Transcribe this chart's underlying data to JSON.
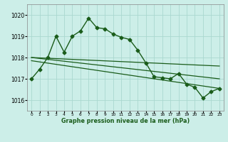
{
  "title": "Graphe pression niveau de la mer (hPa)",
  "bg_color": "#cceee8",
  "grid_color": "#aad8d0",
  "line_color": "#1a5c1a",
  "xlim": [
    -0.5,
    23.5
  ],
  "ylim": [
    1015.5,
    1020.5
  ],
  "yticks": [
    1016,
    1017,
    1018,
    1019,
    1020
  ],
  "xticks": [
    0,
    1,
    2,
    3,
    4,
    5,
    6,
    7,
    8,
    9,
    10,
    11,
    12,
    13,
    14,
    15,
    16,
    17,
    18,
    19,
    20,
    21,
    22,
    23
  ],
  "series": [
    {
      "x": [
        0,
        1,
        2,
        3,
        4,
        5,
        6,
        7,
        8,
        9,
        10,
        11,
        12,
        13,
        14,
        15,
        16,
        17,
        18,
        19,
        20,
        21,
        22,
        23
      ],
      "y": [
        1017.0,
        1017.45,
        1018.0,
        1019.0,
        1018.25,
        1019.0,
        1019.25,
        1019.85,
        1019.4,
        1019.35,
        1019.1,
        1018.95,
        1018.85,
        1018.35,
        1017.75,
        1017.1,
        1017.05,
        1017.0,
        1017.25,
        1016.75,
        1016.6,
        1016.1,
        1016.4,
        1016.55
      ],
      "marker": "D",
      "markersize": 2.5,
      "linewidth": 1.0
    },
    {
      "x": [
        0,
        23
      ],
      "y": [
        1018.0,
        1017.6
      ],
      "marker": null,
      "linewidth": 0.9
    },
    {
      "x": [
        0,
        23
      ],
      "y": [
        1018.0,
        1017.0
      ],
      "marker": null,
      "linewidth": 0.9
    },
    {
      "x": [
        0,
        23
      ],
      "y": [
        1017.85,
        1016.55
      ],
      "marker": null,
      "linewidth": 0.9
    }
  ]
}
